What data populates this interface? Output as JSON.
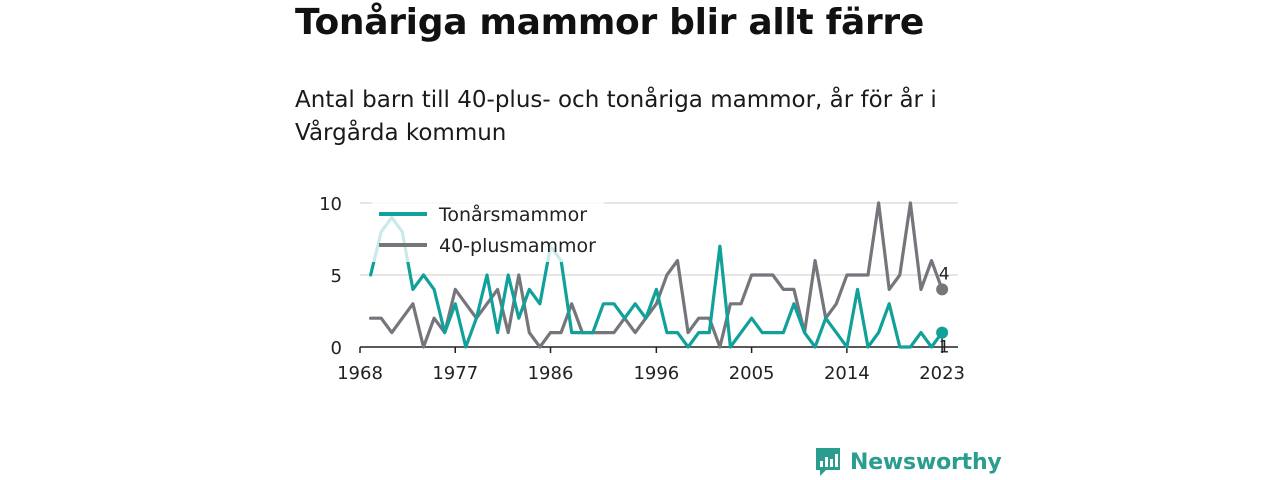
{
  "title": "Tonåriga mammor blir allt färre",
  "subtitle": "Antal barn till 40-plus- och tonåriga mammor, år för år i Vårgårda kommun",
  "brand": {
    "name": "Newsworthy",
    "color": "#2a9d8f"
  },
  "chart_data": {
    "type": "line",
    "title": "Tonåriga mammor blir allt färre",
    "subtitle": "Antal barn till 40-plus- och tonåriga mammor, år för år i Vårgårda kommun",
    "xlabel": "",
    "ylabel": "",
    "xlim": [
      1968,
      2023
    ],
    "ylim": [
      0,
      10
    ],
    "x_ticks": [
      1968,
      1977,
      1986,
      1996,
      2005,
      2014,
      2023
    ],
    "y_ticks": [
      0,
      5,
      10
    ],
    "grid": "horizontal",
    "legend_position": "top-left",
    "x": [
      1969,
      1970,
      1971,
      1972,
      1973,
      1974,
      1975,
      1976,
      1977,
      1978,
      1979,
      1980,
      1981,
      1982,
      1983,
      1984,
      1985,
      1986,
      1987,
      1988,
      1989,
      1990,
      1991,
      1992,
      1993,
      1994,
      1995,
      1996,
      1997,
      1998,
      1999,
      2000,
      2001,
      2002,
      2003,
      2004,
      2005,
      2006,
      2007,
      2008,
      2009,
      2010,
      2011,
      2012,
      2013,
      2014,
      2015,
      2016,
      2017,
      2018,
      2019,
      2020,
      2021,
      2022,
      2023
    ],
    "series": [
      {
        "name": "Tonårsmammor",
        "color": "#11a19a",
        "values": [
          5,
          8,
          9,
          8,
          4,
          5,
          4,
          1,
          3,
          0,
          2,
          5,
          1,
          5,
          2,
          4,
          3,
          7,
          6,
          1,
          1,
          1,
          3,
          3,
          2,
          3,
          2,
          4,
          1,
          1,
          0,
          1,
          1,
          7,
          0,
          1,
          2,
          1,
          1,
          1,
          3,
          1,
          0,
          2,
          1,
          0,
          4,
          0,
          1,
          3,
          0,
          0,
          1,
          0,
          1
        ],
        "end_label": "1"
      },
      {
        "name": "40-plusmammor",
        "color": "#75757c",
        "values": [
          2,
          2,
          1,
          2,
          3,
          0,
          2,
          1,
          4,
          3,
          2,
          3,
          4,
          1,
          5,
          1,
          0,
          1,
          1,
          3,
          1,
          1,
          1,
          1,
          2,
          1,
          2,
          3,
          5,
          6,
          1,
          2,
          2,
          0,
          3,
          3,
          5,
          5,
          5,
          4,
          4,
          1,
          6,
          2,
          3,
          5,
          5,
          5,
          10,
          4,
          5,
          10,
          4,
          6,
          4
        ],
        "end_label": "4"
      }
    ]
  }
}
